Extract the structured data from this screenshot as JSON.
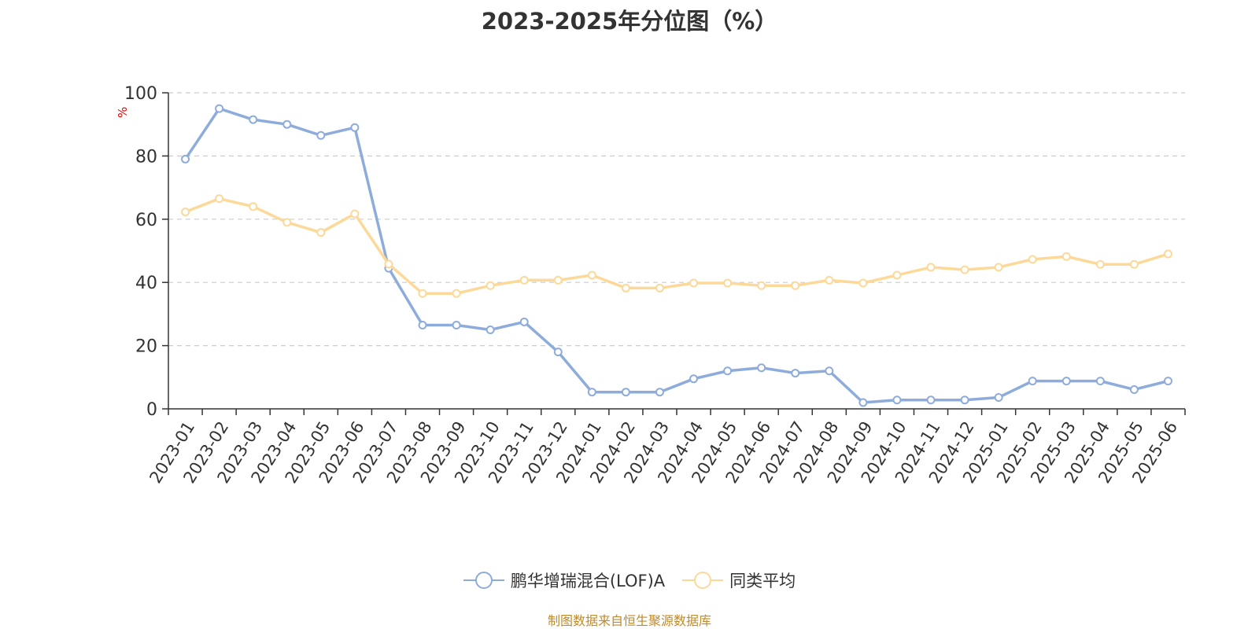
{
  "title": "2023-2025年分位图（%）",
  "source_note": "制图数据来自恒生聚源数据库",
  "chart_data": {
    "type": "line",
    "title": "2023-2025年分位图（%）",
    "xlabel": "",
    "ylabel": "%",
    "ylim": [
      0,
      100
    ],
    "yticks": [
      0,
      20,
      40,
      60,
      80,
      100
    ],
    "grid": true,
    "legend_position": "bottom",
    "categories": [
      "2023-01",
      "2023-02",
      "2023-03",
      "2023-04",
      "2023-05",
      "2023-06",
      "2023-07",
      "2023-08",
      "2023-09",
      "2023-10",
      "2023-11",
      "2023-12",
      "2024-01",
      "2024-02",
      "2024-03",
      "2024-04",
      "2024-05",
      "2024-06",
      "2024-07",
      "2024-08",
      "2024-09",
      "2024-10",
      "2024-11",
      "2024-12",
      "2025-01",
      "2025-02",
      "2025-03",
      "2025-04",
      "2025-05",
      "2025-06"
    ],
    "series": [
      {
        "name": "鹏华增瑞混合(LOF)A",
        "color": "#8eacdb",
        "values": [
          79,
          95,
          91.5,
          90,
          86.5,
          89,
          44.5,
          26.5,
          26.5,
          25,
          27.5,
          18,
          5.3,
          5.3,
          5.3,
          9.5,
          12,
          13,
          11.3,
          12,
          2,
          2.8,
          2.8,
          2.8,
          3.6,
          8.8,
          8.8,
          8.8,
          6.1,
          8.8
        ]
      },
      {
        "name": "同类平均",
        "color": "#fcd999",
        "values": [
          62.3,
          66.5,
          64,
          59,
          55.8,
          61.7,
          45.8,
          36.5,
          36.5,
          39,
          40.7,
          40.7,
          42.3,
          38.2,
          38.2,
          39.8,
          39.8,
          39,
          39,
          40.7,
          39.8,
          42.3,
          44.8,
          44,
          44.8,
          47.3,
          48.2,
          45.7,
          45.7,
          49
        ]
      }
    ]
  }
}
